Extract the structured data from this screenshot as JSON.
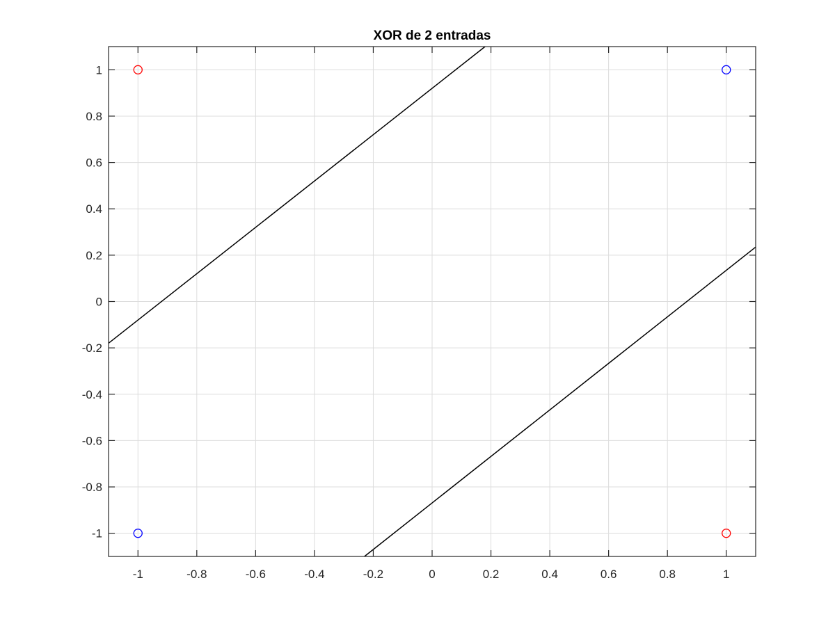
{
  "chart_data": {
    "type": "scatter",
    "title": "XOR de 2 entradas",
    "xlabel": "",
    "ylabel": "",
    "xlim": [
      -1.1,
      1.1
    ],
    "ylim": [
      -1.1,
      1.1
    ],
    "grid": true,
    "x_ticks": [
      -1,
      -0.8,
      -0.6,
      -0.4,
      -0.2,
      0,
      0.2,
      0.4,
      0.6,
      0.8,
      1
    ],
    "x_tick_labels": [
      "-1",
      "-0.8",
      "-0.6",
      "-0.4",
      "-0.2",
      "0",
      "0.2",
      "0.4",
      "0.6",
      "0.8",
      "1"
    ],
    "y_ticks": [
      -1,
      -0.8,
      -0.6,
      -0.4,
      -0.2,
      0,
      0.2,
      0.4,
      0.6,
      0.8,
      1
    ],
    "y_tick_labels": [
      "-1",
      "-0.8",
      "-0.6",
      "-0.4",
      "-0.2",
      "0",
      "0.2",
      "0.4",
      "0.6",
      "0.8",
      "1"
    ],
    "points": [
      {
        "x": -1,
        "y": 1,
        "color": "#ff0000"
      },
      {
        "x": 1,
        "y": 1,
        "color": "#0000ff"
      },
      {
        "x": -1,
        "y": -1,
        "color": "#0000ff"
      },
      {
        "x": 1,
        "y": -1,
        "color": "#ff0000"
      }
    ],
    "lines": [
      {
        "x": [
          -1.1,
          0.18
        ],
        "y": [
          -0.18,
          1.1
        ],
        "color": "#000000"
      },
      {
        "x": [
          -0.23,
          1.1
        ],
        "y": [
          -1.1,
          0.235
        ],
        "color": "#000000"
      }
    ],
    "colors": {
      "axes": "#262626",
      "grid": "#dcdcdc",
      "background": "#ffffff"
    }
  }
}
